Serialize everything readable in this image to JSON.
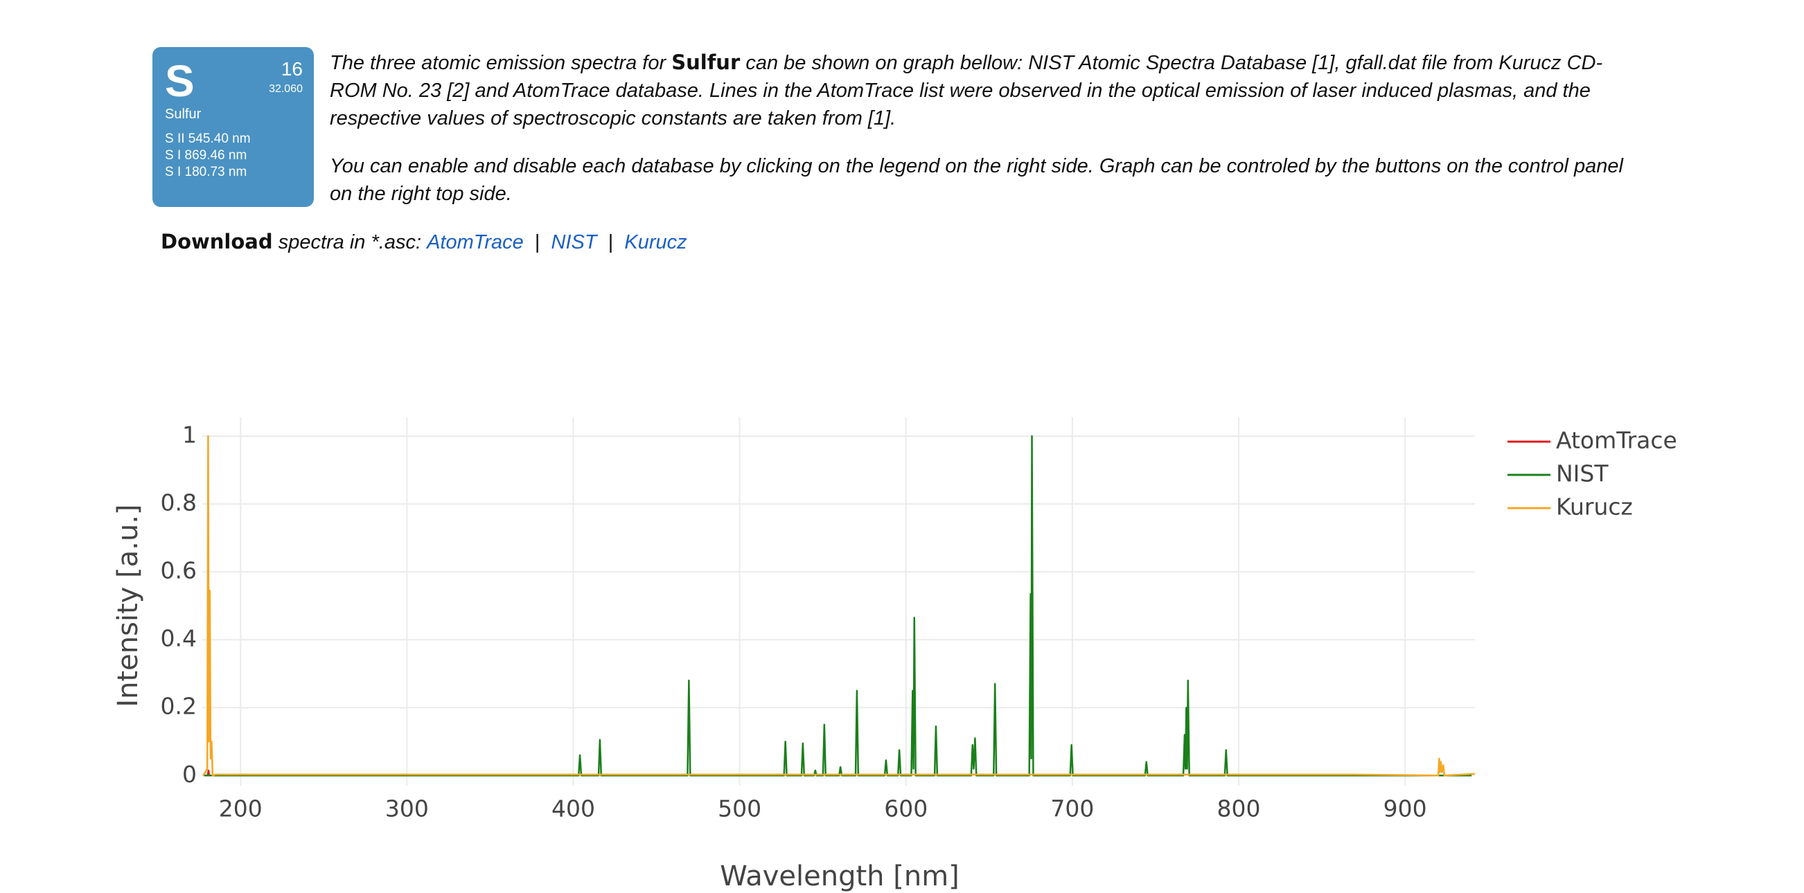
{
  "element_card": {
    "symbol": "S",
    "number": "16",
    "mass": "32.060",
    "name": "Sulfur",
    "lines": [
      "S II 545.40 nm",
      "S I 869.46 nm",
      "S I 180.73 nm"
    ]
  },
  "intro": {
    "p1_before": "The three atomic emission spectra for",
    "p1_bold": "Sulfur",
    "p1_after": "can be shown on graph bellow: NIST Atomic Spectra Database [1], gfall.dat file from Kurucz CD-ROM No. 23 [2] and AtomTrace database. Lines in the AtomTrace list were observed in the optical emission of laser induced plasmas, and the respective values of spectroscopic constants are taken from [1].",
    "p2": "You can enable and disable each database by clicking on the legend on the right side. Graph can be controled by the buttons on the control panel on the right top side."
  },
  "download": {
    "bold": "Download",
    "text": "spectra in *.asc:",
    "links": [
      "AtomTrace",
      "NIST",
      "Kurucz"
    ],
    "separator": "|"
  },
  "chart_data": {
    "type": "line",
    "x_label": "Wavelength [nm]",
    "y_label": "Intensity [a.u.]",
    "xlim": [
      177,
      942
    ],
    "ylim": [
      -0.03,
      1.055
    ],
    "xticks": [
      200,
      300,
      400,
      500,
      600,
      700,
      800,
      900
    ],
    "yticks": [
      0,
      0.2,
      0.4,
      0.6,
      0.8,
      1
    ],
    "grid": true,
    "legend": "right",
    "series": [
      {
        "name": "AtomTrace",
        "color": "#e31a1c",
        "x": [
          180.2,
          180.7,
          181.2
        ],
        "values": [
          0,
          0.015,
          0
        ]
      },
      {
        "name": "NIST",
        "color": "#1a7f1a",
        "x": [
          178,
          403.2,
          404,
          404.8,
          415.2,
          416,
          416.8,
          468.7,
          469.5,
          470.3,
          526.7,
          527.5,
          528.3,
          537.2,
          538,
          538.8,
          544.7,
          545.5,
          546.3,
          550.1,
          550.9,
          551.7,
          559.8,
          560.6,
          561.4,
          569.7,
          570.5,
          571.3,
          587.2,
          588,
          588.8,
          595.2,
          596,
          596.8,
          603.2,
          604,
          604.5,
          605,
          605.8,
          617.2,
          618,
          618.8,
          639.2,
          640,
          640.7,
          641.5,
          642.3,
          652.7,
          653.5,
          654.3,
          674.1,
          674.9,
          675.3,
          675.7,
          676.5,
          698.7,
          699.5,
          700.3,
          743.7,
          744.5,
          745.3,
          766.7,
          767.5,
          768,
          768.5,
          769,
          769.5,
          770.3,
          791.6,
          792.4,
          793.2,
          940
        ],
        "values": [
          0,
          0,
          0.06,
          0,
          0,
          0.105,
          0,
          0,
          0.28,
          0,
          0,
          0.1,
          0,
          0,
          0.095,
          0,
          0,
          0.015,
          0,
          0,
          0.15,
          0,
          0,
          0.025,
          0,
          0,
          0.25,
          0,
          0,
          0.045,
          0,
          0,
          0.075,
          0,
          0,
          0.25,
          0.02,
          0.465,
          0,
          0,
          0.145,
          0,
          0,
          0.09,
          0.02,
          0.11,
          0,
          0,
          0.27,
          0,
          0,
          0.535,
          0.05,
          1,
          0,
          0,
          0.09,
          0,
          0,
          0.04,
          0,
          0,
          0.12,
          0.02,
          0.2,
          0.02,
          0.28,
          0,
          0,
          0.075,
          0,
          0
        ]
      },
      {
        "name": "Kurucz",
        "color": "#f5a623",
        "x": [
          177.5,
          180,
          180.5,
          181,
          181.5,
          182,
          182.6,
          183.2,
          185,
          870,
          920,
          920.5,
          921,
          921.5,
          922.2,
          923,
          923.6,
          942
        ],
        "values": [
          0,
          0.02,
          1,
          0.1,
          0.545,
          0.05,
          0.1,
          0,
          0.003,
          0.003,
          0,
          0.05,
          0.01,
          0.04,
          0.01,
          0.03,
          0,
          0.005
        ]
      }
    ]
  }
}
